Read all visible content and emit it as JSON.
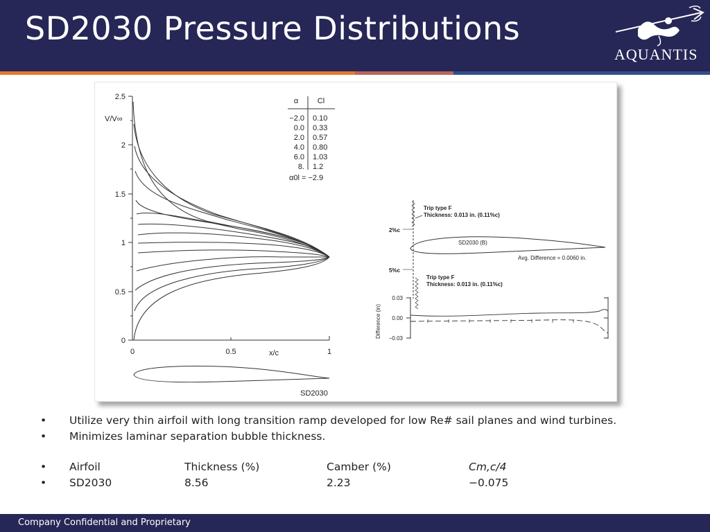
{
  "slide": {
    "title": "SD2030 Pressure Distributions",
    "logo_text": "AQUANTIS",
    "footer": "Company Confidential and Proprietary",
    "colors": {
      "header": "#262657",
      "stripe_orange": "#E27B2C",
      "stripe_mid": "#B8665A",
      "stripe_blue": "#2F4F8F"
    }
  },
  "bullets": [
    {
      "symbol": "•",
      "text": "Utilize very thin airfoil with long transition ramp developed for low Re# sail planes and wind turbines."
    },
    {
      "symbol": "•",
      "text": "Minimizes laminar separation bubble thickness."
    }
  ],
  "table": {
    "header": {
      "symbol": "•",
      "c1": "Airfoil",
      "c2": "Thickness (%)",
      "c3": "Camber (%)",
      "c4": "Cm,c/4"
    },
    "row": {
      "symbol": "•",
      "c1": "SD2030",
      "c2": "8.56",
      "c3": "2.23",
      "c4": "−0.075"
    }
  },
  "figure": {
    "pressure_plot": {
      "ylabel": "V/V∞",
      "xlabel": "x/c",
      "y_ticks": [
        "0",
        "0.5",
        "1",
        "1.5",
        "2",
        "2.5"
      ],
      "x_ticks": [
        "0",
        "0.5",
        "1"
      ],
      "airfoil_label": "SD2030",
      "table_headers": [
        "α",
        "Cl"
      ],
      "table_rows": [
        [
          "−2.0",
          "0.10"
        ],
        [
          "0.0",
          "0.33"
        ],
        [
          "2.0",
          "0.57"
        ],
        [
          "4.0",
          "0.80"
        ],
        [
          "6.0",
          "1.03"
        ],
        [
          "8.",
          "1.2"
        ]
      ],
      "zero_lift_angle": "α0l = −2.9"
    },
    "model_diagram": {
      "trip_label_1": "Trip type F",
      "trip_thickness_1": "Thickness: 0.013 in. (0.11%c)",
      "trip_label_2": "Trip type F",
      "trip_thickness_2": "Thickness: 0.013 in. (0.11%c)",
      "pos_upper": "2%c",
      "pos_lower": "5%c",
      "airfoil_label": "SD2030 (B)",
      "avg_difference": "Avg. Difference = 0.0060 in.",
      "diff_ylabel": "Difference (in)",
      "diff_ticks": [
        "0.03",
        "0.00",
        "−0.03"
      ]
    }
  }
}
